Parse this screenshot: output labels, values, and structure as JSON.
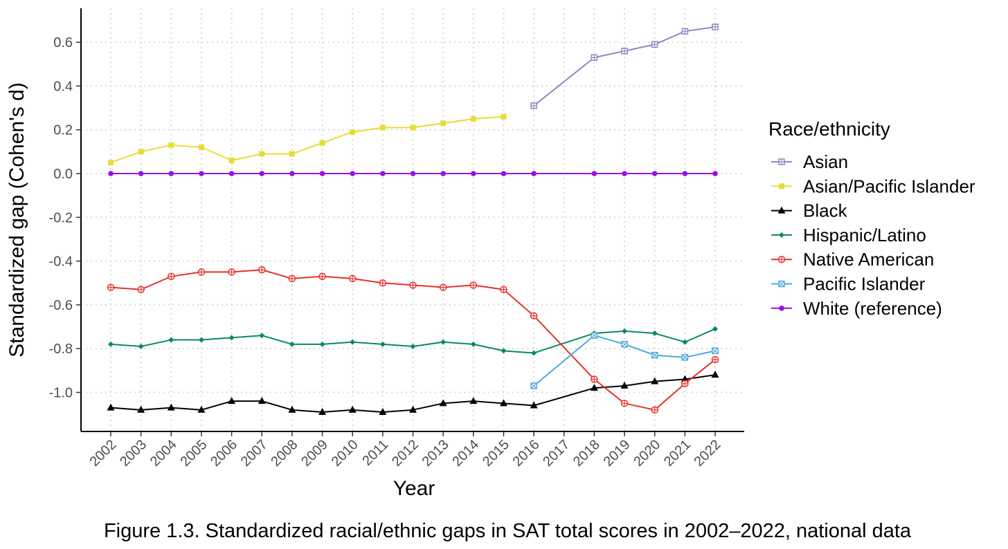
{
  "caption": "Figure 1.3. Standardized racial/ethnic gaps in SAT total scores in 2002–2022, national data",
  "chart_data": {
    "type": "line",
    "xlabel": "Year",
    "ylabel": "Standardized gap (Cohen's d)",
    "categories": [
      "2002",
      "2003",
      "2004",
      "2005",
      "2006",
      "2007",
      "2008",
      "2009",
      "2010",
      "2011",
      "2012",
      "2013",
      "2014",
      "2015",
      "2016",
      "2017",
      "2018",
      "2019",
      "2020",
      "2021",
      "2022"
    ],
    "ylim": [
      -1.18,
      0.75
    ],
    "y_ticks": [
      0.6,
      0.4,
      0.2,
      0.0,
      -0.2,
      -0.4,
      -0.6,
      -0.8,
      -1.0
    ],
    "y_tick_labels": [
      "0.6",
      "0.4",
      "0.2",
      "0.0",
      "-0.2",
      "-0.4",
      "-0.6",
      "-0.8",
      "-1.0"
    ],
    "grid": true,
    "legend_title": "Race/ethnicity",
    "legend_position": "right",
    "series": [
      {
        "name": "Asian",
        "color": "#8888c0",
        "marker": "square-plus",
        "values": [
          null,
          null,
          null,
          null,
          null,
          null,
          null,
          null,
          null,
          null,
          null,
          null,
          null,
          null,
          0.31,
          null,
          0.53,
          0.56,
          0.59,
          0.65,
          0.67
        ]
      },
      {
        "name": "Asian/Pacific Islander",
        "color": "#e8dc34",
        "marker": "square",
        "values": [
          0.05,
          0.1,
          0.13,
          0.12,
          0.06,
          0.09,
          0.09,
          0.14,
          0.19,
          0.21,
          0.21,
          0.23,
          0.25,
          0.26,
          null,
          null,
          null,
          null,
          null,
          null,
          null
        ]
      },
      {
        "name": "Black",
        "color": "#000000",
        "marker": "triangle",
        "values": [
          -1.07,
          -1.08,
          -1.07,
          -1.08,
          -1.04,
          -1.04,
          -1.08,
          -1.09,
          -1.08,
          -1.09,
          -1.08,
          -1.05,
          -1.04,
          -1.05,
          -1.06,
          null,
          -0.98,
          -0.97,
          -0.95,
          -0.94,
          -0.92
        ]
      },
      {
        "name": "Hispanic/Latino",
        "color": "#0a8a5c",
        "marker": "diamond",
        "values": [
          -0.78,
          -0.79,
          -0.76,
          -0.76,
          -0.75,
          -0.74,
          -0.78,
          -0.78,
          -0.77,
          -0.78,
          -0.79,
          -0.77,
          -0.78,
          -0.81,
          -0.82,
          null,
          -0.73,
          -0.72,
          -0.73,
          -0.77,
          -0.71
        ]
      },
      {
        "name": "Native American",
        "color": "#e8302a",
        "marker": "circle-plus",
        "values": [
          -0.52,
          -0.53,
          -0.47,
          -0.45,
          -0.45,
          -0.44,
          -0.48,
          -0.47,
          -0.48,
          -0.5,
          -0.51,
          -0.52,
          -0.51,
          -0.53,
          -0.65,
          null,
          -0.94,
          -1.05,
          -1.08,
          -0.96,
          -0.85
        ]
      },
      {
        "name": "Pacific Islander",
        "color": "#4aaad8",
        "marker": "square-x",
        "values": [
          null,
          null,
          null,
          null,
          null,
          null,
          null,
          null,
          null,
          null,
          null,
          null,
          null,
          null,
          -0.97,
          null,
          -0.74,
          -0.78,
          -0.83,
          -0.84,
          -0.81
        ]
      },
      {
        "name": "White (reference)",
        "color": "#9a10e0",
        "marker": "circle",
        "values": [
          0,
          0,
          0,
          0,
          0,
          0,
          0,
          0,
          0,
          0,
          0,
          0,
          0,
          0,
          0,
          null,
          0,
          0,
          0,
          0,
          0
        ]
      }
    ]
  }
}
